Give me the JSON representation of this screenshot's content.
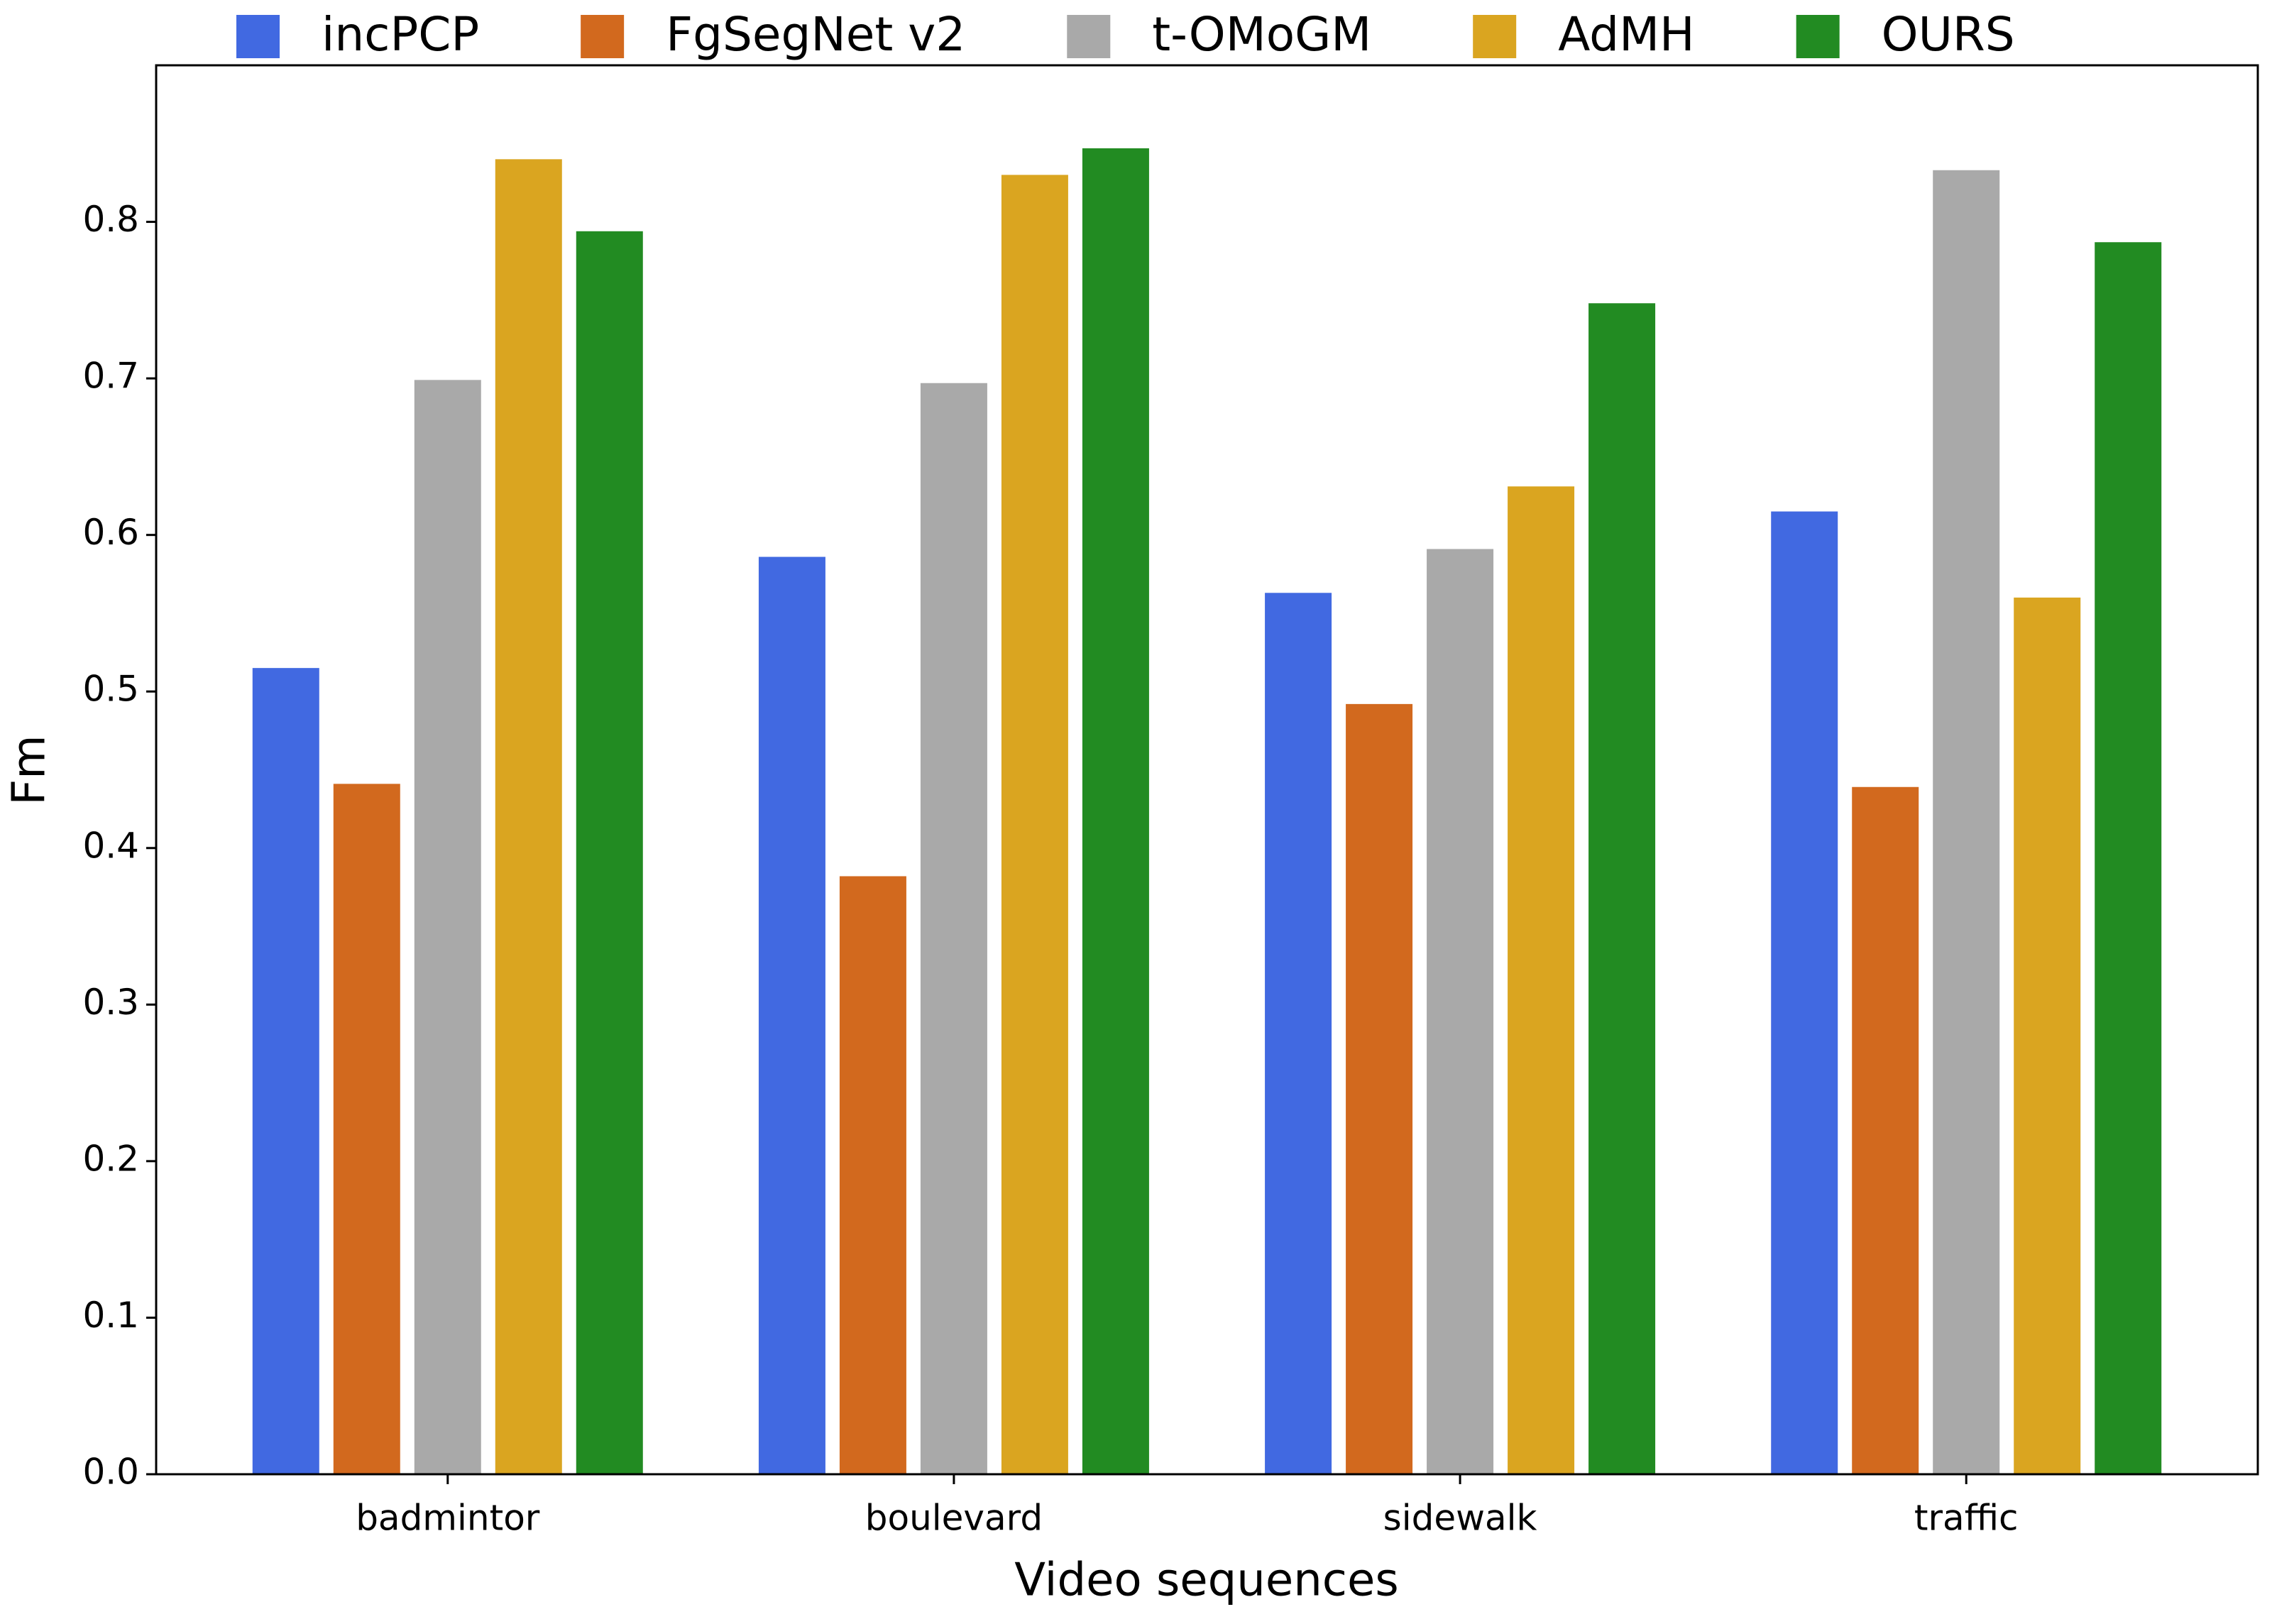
{
  "chart_data": {
    "type": "bar",
    "x_label": "Video sequences",
    "y_label": "Fm",
    "categories": [
      "badmintor",
      "boulevard",
      "sidewalk",
      "traffic"
    ],
    "series": [
      {
        "name": "incPCP",
        "color": "#4169e1",
        "values": [
          0.515,
          0.586,
          0.563,
          0.615
        ]
      },
      {
        "name": "FgSegNet v2",
        "color": "#d2691e",
        "values": [
          0.441,
          0.382,
          0.492,
          0.439
        ]
      },
      {
        "name": "t-OMoGM",
        "color": "#a9a9a9",
        "values": [
          0.699,
          0.697,
          0.591,
          0.833
        ]
      },
      {
        "name": "AdMH",
        "color": "#daa520",
        "values": [
          0.84,
          0.83,
          0.631,
          0.56
        ]
      },
      {
        "name": "OURS",
        "color": "#228b22",
        "values": [
          0.794,
          0.847,
          0.748,
          0.787
        ]
      }
    ],
    "ylim": [
      0,
      0.9
    ],
    "yticks": [
      {
        "value": 0,
        "label": "0.0"
      },
      0.1,
      0.2,
      0.3,
      0.4,
      0.5,
      0.6,
      0.7,
      0.8
    ],
    "legend": "top",
    "grid": false
  }
}
